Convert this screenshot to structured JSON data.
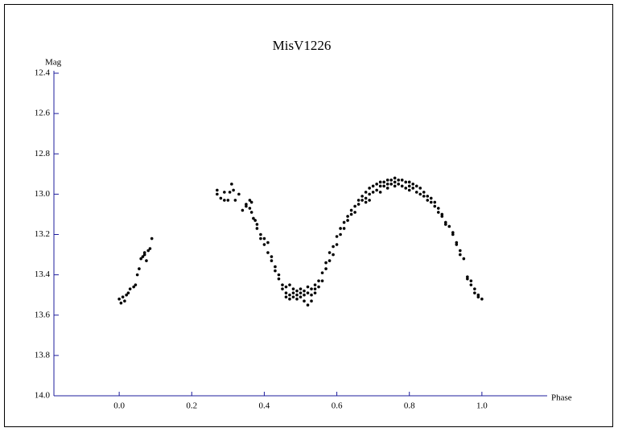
{
  "chart_data": {
    "type": "scatter",
    "title": "MisV1226",
    "x_label": "Phase",
    "y_label": "Mag",
    "xlim": [
      -0.18,
      1.18
    ],
    "ylim": [
      12.4,
      14.0
    ],
    "y_inverted": true,
    "xticks": [
      {
        "value": 0,
        "label": "0.0"
      },
      0.2,
      0.4,
      0.6,
      0.8,
      {
        "value": 1,
        "label": "1.0"
      }
    ],
    "yticks": [
      12.4,
      12.6,
      12.8,
      {
        "value": 13,
        "label": "13.0"
      },
      13.2,
      13.4,
      13.6,
      13.8,
      {
        "value": 14,
        "label": "14.0"
      }
    ],
    "axis_color": "#1c1c9c",
    "series": [
      {
        "color": "#000000",
        "x": [
          0.0,
          0.005,
          0.01,
          0.015,
          0.02,
          0.025,
          0.03,
          0.04,
          0.045,
          0.05,
          0.055,
          0.06,
          0.065,
          0.07,
          0.07,
          0.075,
          0.08,
          0.085,
          0.09,
          0.27,
          0.27,
          0.28,
          0.29,
          0.29,
          0.3,
          0.305,
          0.31,
          0.315,
          0.32,
          0.33,
          0.34,
          0.35,
          0.35,
          0.36,
          0.36,
          0.365,
          0.365,
          0.37,
          0.375,
          0.38,
          0.38,
          0.39,
          0.39,
          0.4,
          0.4,
          0.41,
          0.41,
          0.42,
          0.42,
          0.43,
          0.43,
          0.44,
          0.44,
          0.45,
          0.45,
          0.46,
          0.46,
          0.46,
          0.47,
          0.47,
          0.47,
          0.48,
          0.48,
          0.48,
          0.49,
          0.49,
          0.49,
          0.5,
          0.5,
          0.5,
          0.51,
          0.51,
          0.51,
          0.52,
          0.52,
          0.52,
          0.53,
          0.53,
          0.53,
          0.54,
          0.54,
          0.54,
          0.55,
          0.55,
          0.56,
          0.56,
          0.57,
          0.57,
          0.58,
          0.58,
          0.59,
          0.59,
          0.6,
          0.6,
          0.61,
          0.61,
          0.62,
          0.62,
          0.63,
          0.63,
          0.64,
          0.64,
          0.65,
          0.65,
          0.66,
          0.66,
          0.67,
          0.67,
          0.68,
          0.68,
          0.68,
          0.69,
          0.69,
          0.69,
          0.7,
          0.7,
          0.71,
          0.71,
          0.72,
          0.72,
          0.72,
          0.73,
          0.73,
          0.74,
          0.74,
          0.74,
          0.75,
          0.75,
          0.76,
          0.76,
          0.76,
          0.77,
          0.77,
          0.78,
          0.78,
          0.79,
          0.79,
          0.8,
          0.8,
          0.8,
          0.81,
          0.81,
          0.82,
          0.82,
          0.83,
          0.83,
          0.84,
          0.84,
          0.85,
          0.85,
          0.86,
          0.86,
          0.87,
          0.87,
          0.88,
          0.88,
          0.89,
          0.89,
          0.9,
          0.9,
          0.91,
          0.92,
          0.92,
          0.93,
          0.93,
          0.94,
          0.94,
          0.95,
          0.96,
          0.96,
          0.97,
          0.97,
          0.98,
          0.98,
          0.99,
          0.99,
          1.0
        ],
        "values": [
          13.52,
          13.54,
          13.51,
          13.53,
          13.5,
          13.49,
          13.47,
          13.46,
          13.45,
          13.4,
          13.37,
          13.32,
          13.31,
          13.3,
          13.29,
          13.33,
          13.28,
          13.27,
          13.22,
          12.98,
          13.0,
          13.02,
          12.99,
          13.03,
          13.03,
          12.99,
          12.95,
          12.98,
          13.03,
          13.0,
          13.08,
          13.06,
          13.05,
          13.07,
          13.03,
          13.04,
          13.09,
          13.12,
          13.13,
          13.15,
          13.17,
          13.2,
          13.22,
          13.22,
          13.25,
          13.24,
          13.29,
          13.31,
          13.33,
          13.36,
          13.38,
          13.4,
          13.42,
          13.45,
          13.47,
          13.46,
          13.49,
          13.51,
          13.45,
          13.5,
          13.52,
          13.47,
          13.49,
          13.51,
          13.48,
          13.5,
          13.52,
          13.47,
          13.49,
          13.51,
          13.48,
          13.5,
          13.53,
          13.46,
          13.49,
          13.55,
          13.47,
          13.5,
          13.53,
          13.45,
          13.47,
          13.49,
          13.43,
          13.46,
          13.39,
          13.43,
          13.34,
          13.37,
          13.29,
          13.33,
          13.26,
          13.3,
          13.21,
          13.25,
          13.17,
          13.2,
          13.14,
          13.17,
          13.11,
          13.13,
          13.08,
          13.1,
          13.06,
          13.09,
          13.03,
          13.05,
          13.01,
          13.03,
          12.99,
          13.02,
          13.04,
          12.97,
          13.0,
          13.03,
          12.96,
          12.99,
          12.95,
          12.98,
          12.94,
          12.96,
          12.99,
          12.94,
          12.96,
          12.93,
          12.95,
          12.97,
          12.93,
          12.95,
          12.92,
          12.94,
          12.96,
          12.93,
          12.95,
          12.93,
          12.96,
          12.94,
          12.97,
          12.94,
          12.96,
          12.98,
          12.95,
          12.97,
          12.96,
          12.99,
          12.97,
          13.0,
          12.99,
          13.01,
          13.01,
          13.03,
          13.02,
          13.04,
          13.04,
          13.06,
          13.07,
          13.09,
          13.1,
          13.11,
          13.14,
          13.15,
          13.16,
          13.19,
          13.2,
          13.24,
          13.25,
          13.28,
          13.3,
          13.32,
          13.41,
          13.42,
          13.43,
          13.45,
          13.47,
          13.49,
          13.5,
          13.51,
          13.52
        ]
      }
    ]
  }
}
